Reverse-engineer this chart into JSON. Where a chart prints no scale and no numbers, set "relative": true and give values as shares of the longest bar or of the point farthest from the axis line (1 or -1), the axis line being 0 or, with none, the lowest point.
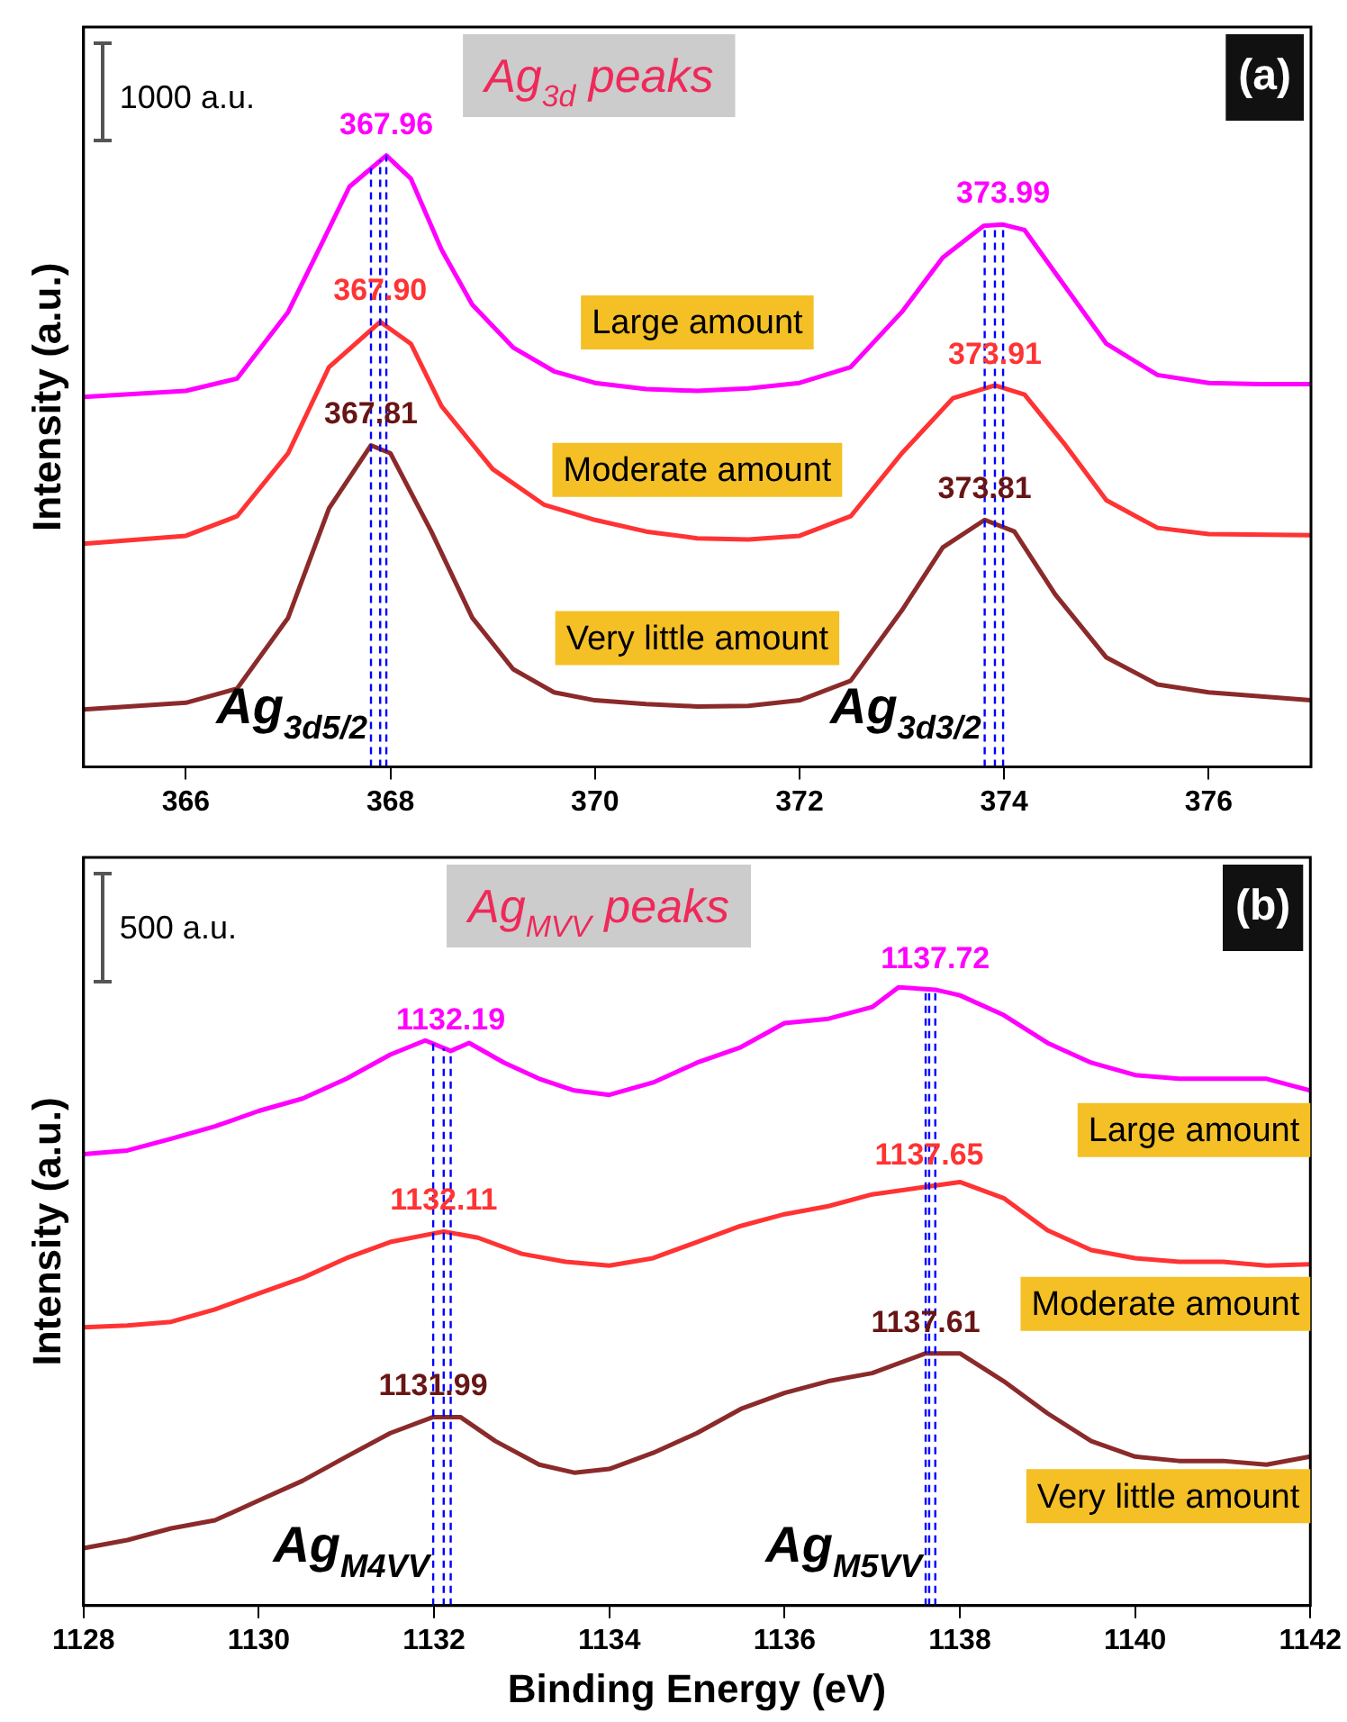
{
  "chart_data": [
    {
      "type": "line",
      "title": "Ag$_{3d}$ peaks",
      "ylabel": "Intensity (a.u.)",
      "relative": true,
      "legend": false,
      "grid": false,
      "marker": "none",
      "line_style": "solid",
      "xlim": [
        365,
        377
      ],
      "xticks": [
        366,
        368,
        370,
        372,
        374,
        376
      ],
      "x": [
        365,
        366,
        366.5,
        367,
        367.3,
        367.6,
        367.96,
        368.2,
        368.5,
        368.8,
        369.2,
        369.6,
        370,
        370.5,
        371,
        371.5,
        372,
        372.5,
        373,
        373.4,
        373.8,
        373.99,
        374.2,
        374.5,
        375,
        375.5,
        376,
        376.5,
        377
      ],
      "series": [
        {
          "name": "Large amount",
          "color": "#ff00ff",
          "values": [
            0.605,
            0.615,
            0.635,
            0.744,
            0.846,
            0.949,
            1.0,
            0.962,
            0.846,
            0.756,
            0.686,
            0.647,
            0.628,
            0.618,
            0.615,
            0.619,
            0.628,
            0.654,
            0.744,
            0.833,
            0.885,
            0.887,
            0.878,
            0.808,
            0.692,
            0.641,
            0.628,
            0.626,
            0.626
          ]
        },
        {
          "name": "Moderate amount",
          "color": "#ff3333",
          "x": [
            365,
            366,
            366.5,
            367,
            367.4,
            367.9,
            368.2,
            368.5,
            369,
            369.5,
            370,
            370.5,
            371,
            371.5,
            372,
            372.5,
            373,
            373.5,
            373.91,
            374.2,
            374.6,
            375,
            375.5,
            376,
            377
          ],
          "values": [
            0.365,
            0.378,
            0.41,
            0.513,
            0.654,
            0.728,
            0.692,
            0.59,
            0.487,
            0.429,
            0.404,
            0.385,
            0.374,
            0.372,
            0.378,
            0.41,
            0.513,
            0.603,
            0.624,
            0.609,
            0.526,
            0.436,
            0.391,
            0.381,
            0.379
          ]
        },
        {
          "name": "Very little amount",
          "color": "#8b2a2a",
          "x": [
            365,
            366,
            366.5,
            367,
            367.4,
            367.81,
            368,
            368.4,
            368.8,
            369.2,
            369.6,
            370,
            370.5,
            371,
            371.5,
            372,
            372.5,
            373,
            373.4,
            373.81,
            374.1,
            374.5,
            375,
            375.5,
            376,
            377
          ],
          "values": [
            0.094,
            0.105,
            0.128,
            0.244,
            0.423,
            0.526,
            0.513,
            0.385,
            0.244,
            0.16,
            0.122,
            0.109,
            0.103,
            0.099,
            0.1,
            0.109,
            0.141,
            0.256,
            0.359,
            0.404,
            0.385,
            0.282,
            0.179,
            0.135,
            0.122,
            0.109
          ]
        }
      ],
      "ref_lines": [
        {
          "axis": "x",
          "value": 367.96,
          "color": "#0000ff",
          "line_style": "dashed"
        },
        {
          "axis": "x",
          "value": 367.9,
          "color": "#0000ff",
          "line_style": "dashed"
        },
        {
          "axis": "x",
          "value": 367.81,
          "color": "#0000ff",
          "line_style": "dashed"
        },
        {
          "axis": "x",
          "value": 373.99,
          "color": "#0000ff",
          "line_style": "dashed"
        },
        {
          "axis": "x",
          "value": 373.91,
          "color": "#0000ff",
          "line_style": "dashed"
        },
        {
          "axis": "x",
          "value": 373.81,
          "color": "#0000ff",
          "line_style": "dashed"
        }
      ],
      "annotations": [
        "1000 a.u.",
        "(a)",
        {
          "text": "367.96",
          "x": 367.96,
          "y": 1.0
        },
        {
          "text": "367.90",
          "x": 367.9,
          "y": 0.728
        },
        {
          "text": "367.81",
          "x": 367.81,
          "y": 0.526
        },
        {
          "text": "373.99",
          "x": 373.99,
          "y": 0.887
        },
        {
          "text": "373.91",
          "x": 373.91,
          "y": 0.624
        },
        {
          "text": "373.81",
          "x": 373.81,
          "y": 0.404
        },
        {
          "text": "Ag$_{3d5/2}$",
          "x": 367.81,
          "y": 0.03
        },
        {
          "text": "Ag$_{3d3/2}$",
          "x": 373.81,
          "y": 0.03
        }
      ]
    },
    {
      "type": "line",
      "title": "Ag$_{MVV}$ peaks",
      "xlabel": "Binding Energy (eV)",
      "ylabel": "Intensity (a.u.)",
      "relative": true,
      "legend": false,
      "grid": false,
      "marker": "none",
      "line_style": "solid",
      "xlim": [
        1128,
        1142
      ],
      "xticks": [
        1128,
        1130,
        1132,
        1134,
        1136,
        1138,
        1140,
        1142
      ],
      "x": [
        1128,
        1128.5,
        1129,
        1129.5,
        1130,
        1130.5,
        1131,
        1131.5,
        1131.9,
        1132.19,
        1132.4,
        1132.8,
        1133.2,
        1133.6,
        1134,
        1134.5,
        1135,
        1135.5,
        1136,
        1136.5,
        1137,
        1137.3,
        1137.72,
        1138,
        1138.5,
        1139,
        1139.5,
        1140,
        1140.5,
        1141,
        1141.5,
        1142
      ],
      "series": [
        {
          "name": "Large amount",
          "color": "#ff00ff",
          "values": [
            0.73,
            0.736,
            0.755,
            0.775,
            0.8,
            0.82,
            0.852,
            0.891,
            0.914,
            0.897,
            0.91,
            0.878,
            0.852,
            0.833,
            0.826,
            0.846,
            0.878,
            0.903,
            0.942,
            0.949,
            0.968,
            1.0,
            0.996,
            0.987,
            0.955,
            0.91,
            0.878,
            0.858,
            0.852,
            0.852,
            0.852,
            0.833
          ]
        },
        {
          "name": "Moderate amount",
          "color": "#ff3333",
          "x": [
            1128,
            1128.5,
            1129,
            1129.5,
            1130,
            1130.5,
            1131,
            1131.5,
            1132.11,
            1132.5,
            1133,
            1133.5,
            1134,
            1134.5,
            1135,
            1135.5,
            1136,
            1136.5,
            1137,
            1137.65,
            1138,
            1138.5,
            1139,
            1139.5,
            1140,
            1140.5,
            1141,
            1141.5,
            1142
          ],
          "values": [
            0.45,
            0.453,
            0.459,
            0.479,
            0.505,
            0.53,
            0.562,
            0.588,
            0.605,
            0.595,
            0.569,
            0.556,
            0.55,
            0.562,
            0.588,
            0.614,
            0.633,
            0.646,
            0.665,
            0.678,
            0.685,
            0.659,
            0.607,
            0.575,
            0.562,
            0.556,
            0.556,
            0.55,
            0.552
          ]
        },
        {
          "name": "Very little amount",
          "color": "#8b2a2a",
          "x": [
            1128,
            1128.5,
            1129,
            1129.5,
            1130,
            1130.5,
            1131,
            1131.5,
            1131.99,
            1132.3,
            1132.7,
            1133.2,
            1133.6,
            1134,
            1134.5,
            1135,
            1135.5,
            1136,
            1136.5,
            1137,
            1137.61,
            1138,
            1138.5,
            1139,
            1139.5,
            1140,
            1140.5,
            1141,
            1141.5,
            1142
          ],
          "values": [
            0.093,
            0.106,
            0.125,
            0.138,
            0.17,
            0.202,
            0.241,
            0.279,
            0.305,
            0.305,
            0.266,
            0.228,
            0.215,
            0.221,
            0.247,
            0.279,
            0.318,
            0.344,
            0.363,
            0.376,
            0.408,
            0.408,
            0.363,
            0.311,
            0.266,
            0.241,
            0.234,
            0.234,
            0.228,
            0.241
          ]
        }
      ],
      "ref_lines": [
        {
          "axis": "x",
          "value": 1132.19,
          "color": "#0000ff",
          "line_style": "dashed"
        },
        {
          "axis": "x",
          "value": 1132.11,
          "color": "#0000ff",
          "line_style": "dashed"
        },
        {
          "axis": "x",
          "value": 1131.99,
          "color": "#0000ff",
          "line_style": "dashed"
        },
        {
          "axis": "x",
          "value": 1137.72,
          "color": "#0000ff",
          "line_style": "dashed"
        },
        {
          "axis": "x",
          "value": 1137.65,
          "color": "#0000ff",
          "line_style": "dashed"
        },
        {
          "axis": "x",
          "value": 1137.61,
          "color": "#0000ff",
          "line_style": "dashed"
        }
      ],
      "annotations": [
        "500 a.u.",
        "(b)",
        {
          "text": "1132.19",
          "x": 1132.19,
          "y": 0.897
        },
        {
          "text": "1132.11",
          "x": 1132.11,
          "y": 0.605
        },
        {
          "text": "1131.99",
          "x": 1131.99,
          "y": 0.305
        },
        {
          "text": "1137.72",
          "x": 1137.72,
          "y": 0.996
        },
        {
          "text": "1137.65",
          "x": 1137.65,
          "y": 0.678
        },
        {
          "text": "1137.61",
          "x": 1137.61,
          "y": 0.408
        },
        {
          "text": "Ag$_{M4VV}$",
          "x": 1131.99,
          "y": 0.03
        },
        {
          "text": "Ag$_{M5VV}$",
          "x": 1137.61,
          "y": 0.03
        }
      ]
    }
  ]
}
